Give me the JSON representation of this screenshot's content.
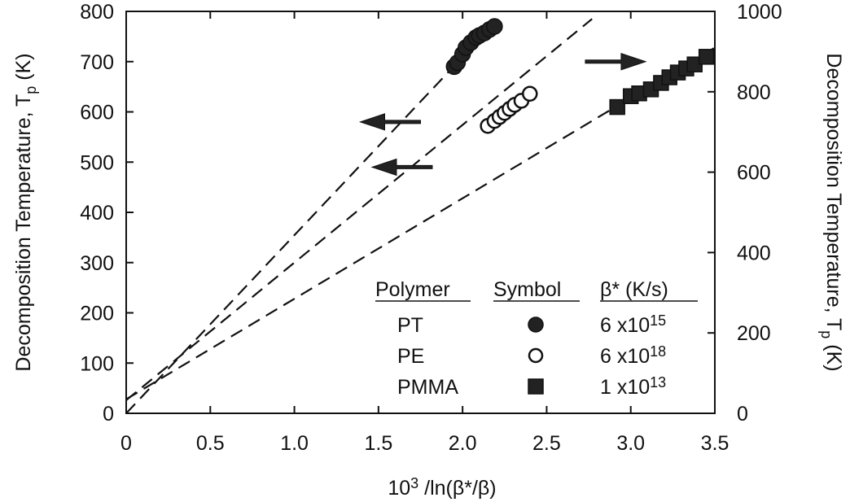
{
  "chart_data": {
    "type": "scatter",
    "xlabel": {
      "base": "10",
      "sup": "3",
      "rest": " /ln(β*/β)"
    },
    "ylabel_left": {
      "main": "Decomposition Temperature, T",
      "sub": "p",
      "unit": " (K)"
    },
    "ylabel_right": {
      "main": "Decomposition Temperature, T",
      "sub": "p",
      "unit": " (K)"
    },
    "xlim": [
      0,
      3.5
    ],
    "ylim_left": [
      0,
      800
    ],
    "ylim_right": [
      0,
      1000
    ],
    "x_ticks": [
      "0",
      "0.5",
      "1.0",
      "1.5",
      "2.0",
      "2.5",
      "3.0",
      "3.5"
    ],
    "x_tick_values": [
      0,
      0.5,
      1.0,
      1.5,
      2.0,
      2.5,
      3.0,
      3.5
    ],
    "y_left_ticks": [
      "0",
      "100",
      "200",
      "300",
      "400",
      "500",
      "600",
      "700",
      "800"
    ],
    "y_left_tick_values": [
      0,
      100,
      200,
      300,
      400,
      500,
      600,
      700,
      800
    ],
    "y_right_ticks": [
      "0",
      "200",
      "400",
      "600",
      "800",
      "1000"
    ],
    "y_right_tick_values": [
      0,
      200,
      400,
      600,
      800,
      1000
    ],
    "series": [
      {
        "name": "PT",
        "marker": "filled-circle",
        "axis": "left",
        "x": [
          1.95,
          1.97,
          2.0,
          2.02,
          2.05,
          2.08,
          2.1,
          2.13,
          2.16,
          2.19
        ],
        "y": [
          690,
          698,
          715,
          728,
          738,
          748,
          752,
          757,
          764,
          770
        ],
        "fit_line": {
          "x": [
            0,
            2.2
          ],
          "y": [
            0,
            780
          ]
        }
      },
      {
        "name": "PE",
        "marker": "open-circle",
        "axis": "left",
        "x": [
          2.15,
          2.19,
          2.22,
          2.25,
          2.28,
          2.31,
          2.35,
          2.4
        ],
        "y": [
          572,
          582,
          590,
          598,
          606,
          614,
          622,
          636
        ],
        "fit_line": {
          "x": [
            0,
            2.77
          ],
          "y": [
            26,
            785
          ]
        }
      },
      {
        "name": "PMMA",
        "marker": "filled-square",
        "axis": "right",
        "x": [
          2.92,
          3.0,
          3.05,
          3.12,
          3.18,
          3.23,
          3.28,
          3.33,
          3.38,
          3.45
        ],
        "y": [
          762,
          789,
          796,
          806,
          822,
          836,
          848,
          858,
          868,
          887
        ],
        "fit_line": {
          "x": [
            0,
            3.5
          ],
          "y": [
            35,
            910
          ]
        }
      }
    ],
    "arrows": [
      {
        "series": "PT",
        "direction": "left"
      },
      {
        "series": "PE",
        "direction": "right"
      },
      {
        "series": "PMMA",
        "direction": "left"
      }
    ],
    "legend": {
      "headers": [
        "Polymer",
        "Symbol",
        "β* (K/s)"
      ],
      "rows": [
        {
          "polymer": "PT",
          "marker": "filled-circle",
          "beta_base": "6 x10",
          "beta_exp": "15"
        },
        {
          "polymer": "PE",
          "marker": "open-circle",
          "beta_base": "6 x10",
          "beta_exp": "18"
        },
        {
          "polymer": "PMMA",
          "marker": "filled-square",
          "beta_base": "1 x10",
          "beta_exp": "13"
        }
      ]
    },
    "grid": false
  }
}
